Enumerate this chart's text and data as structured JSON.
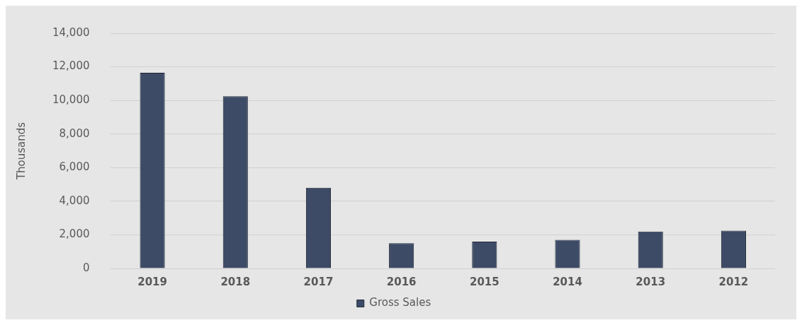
{
  "chart_data": {
    "type": "bar",
    "ylabel": "Thousands",
    "categories": [
      "2019",
      "2018",
      "2017",
      "2016",
      "2015",
      "2014",
      "2013",
      "2012"
    ],
    "series": [
      {
        "name": "Gross Sales",
        "color": "#3d4b66",
        "values": [
          11650,
          10250,
          4800,
          1500,
          1600,
          1700,
          2200,
          2250
        ]
      }
    ],
    "ylim": [
      0,
      14000
    ],
    "yticks": [
      0,
      {
        "value": 2000,
        "label": "2,000"
      },
      {
        "value": 4000,
        "label": "4,000"
      },
      {
        "value": 6000,
        "label": "6,000"
      },
      {
        "value": 8000,
        "label": "8,000"
      },
      {
        "value": 10000,
        "label": "10,000"
      },
      {
        "value": 12000,
        "label": "12,000"
      },
      {
        "value": 14000,
        "label": "14,000"
      }
    ],
    "grid": "y",
    "legend": "bottom"
  }
}
